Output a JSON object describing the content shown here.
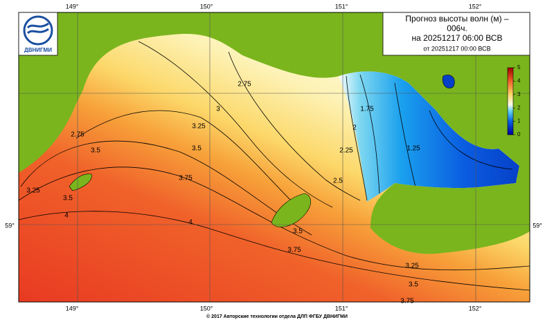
{
  "logo": "ДВНИГМИ",
  "title": [
    "Прогноз высоты волн (м) –",
    "006ч.",
    "на 20251217 06:00 ВСВ"
  ],
  "subtitle": "от 20251217 00:00 ВСВ",
  "lon_labels_top": [
    "149°",
    "150°",
    "151°",
    "152°"
  ],
  "lon_labels_bottom": [
    "149°",
    "150°",
    "151°",
    "152°"
  ],
  "lat_labels": [
    "59°",
    "59°"
  ],
  "colorbar": {
    "range": [
      0,
      5
    ],
    "ticks": [
      0,
      1,
      2,
      3,
      4,
      5
    ]
  },
  "contour_labels": [
    2.75,
    3,
    3.25,
    3.5,
    3.75,
    4,
    4,
    3.5,
    3.75,
    3.25,
    3.5,
    3.75,
    3.25,
    3.5,
    3.5,
    2.75,
    2.5,
    2.25,
    2,
    1.75,
    1.25
  ],
  "footer": "© 2017 Авторские технологии отдела ДЛП ФГБУ ДВНИГМИ"
}
